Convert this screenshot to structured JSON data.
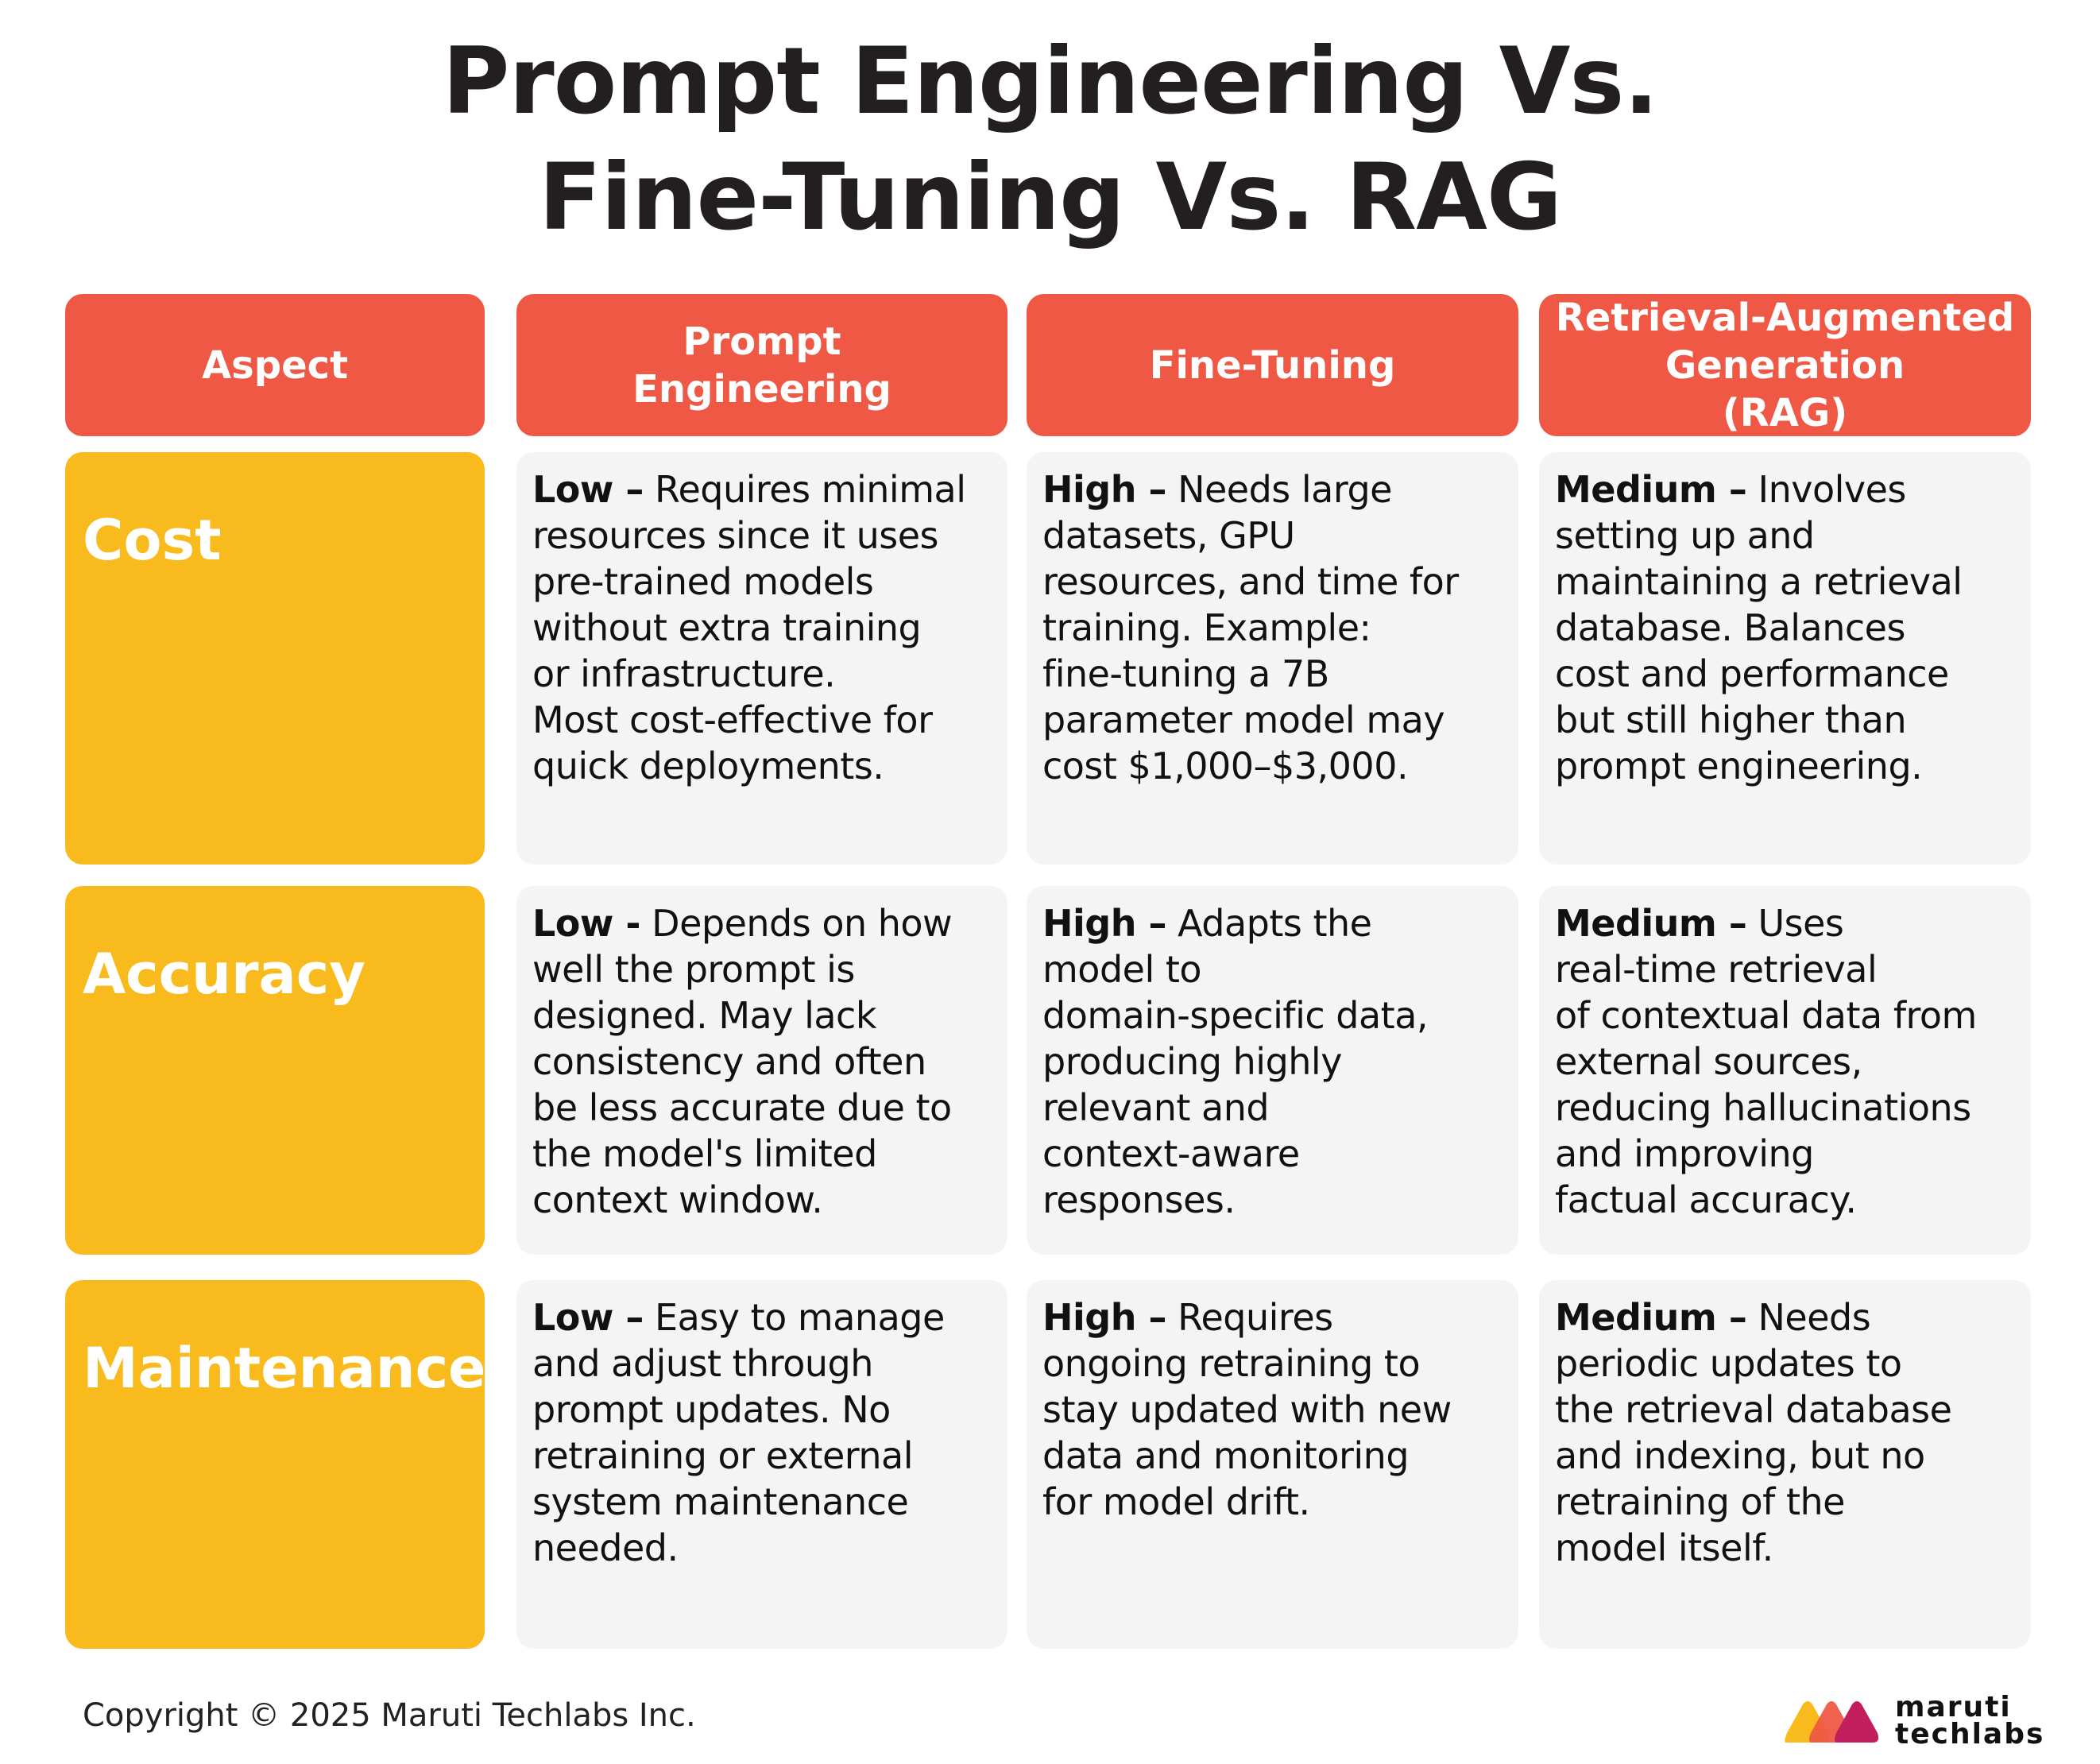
{
  "title": "Prompt Engineering Vs.\nFine-Tuning Vs. RAG",
  "headers": [
    "Aspect",
    "Prompt\nEngineering",
    "Fine-Tuning",
    "Retrieval-Augmented\nGeneration\n(RAG)"
  ],
  "rows": [
    {
      "label": "Cost",
      "cells": [
        {
          "lead": "Low –",
          "text": " Requires minimal\nresources since it uses\npre-trained models\nwithout extra training\nor infrastructure.\nMost cost-effective for\nquick deployments."
        },
        {
          "lead": "High –",
          "text": " Needs large\ndatasets, GPU\nresources, and time for\ntraining. Example:\nfine-tuning a 7B\nparameter model may\ncost $1,000–$3,000."
        },
        {
          "lead": "Medium –",
          "text": " Involves\nsetting up and\nmaintaining a retrieval\ndatabase. Balances\ncost and performance\nbut still higher than\nprompt engineering."
        }
      ]
    },
    {
      "label": "Accuracy",
      "cells": [
        {
          "lead": "Low -",
          "text": " Depends on how\nwell the prompt is\ndesigned. May lack\nconsistency and often\nbe less accurate due to\nthe model's limited\ncontext window."
        },
        {
          "lead": "High –",
          "text": " Adapts the\nmodel to\ndomain-specific data,\nproducing highly\nrelevant and\ncontext-aware\nresponses."
        },
        {
          "lead": "Medium –",
          "text": " Uses\nreal-time retrieval\nof contextual data from\nexternal sources,\nreducing hallucinations\nand improving\nfactual accuracy."
        }
      ]
    },
    {
      "label": "Maintenance",
      "cells": [
        {
          "lead": "Low –",
          "text": " Easy to manage\nand adjust through\nprompt updates. No\nretraining or external\nsystem maintenance\nneeded."
        },
        {
          "lead": "High –",
          "text": " Requires\nongoing retraining to\nstay updated with new\ndata and monitoring\nfor model drift."
        },
        {
          "lead": "Medium –",
          "text": " Needs\nperiodic updates to\nthe retrieval database\nand indexing, but no\nretraining of the\nmodel itself."
        }
      ]
    }
  ],
  "footer": {
    "copyright": "Copyright © 2025 Maruti Techlabs Inc.",
    "logo_text": "maruti\ntechlabs"
  },
  "colors": {
    "header": "#ef5845",
    "label": "#f8ba1c",
    "cell": "#f4f4f4"
  }
}
